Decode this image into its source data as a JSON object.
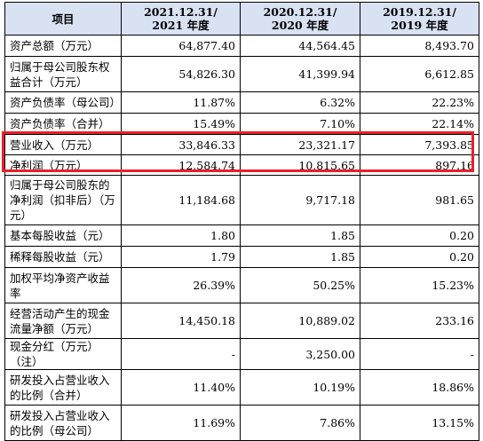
{
  "headers": [
    "项目",
    "2021.12.31/\n2021 年度",
    "2020.12.31/\n2020 年度",
    "2019.12.31/\n2019 年度"
  ],
  "rows": [
    {
      "label": "资产总额（万元）",
      "values": [
        "64,877.40",
        "44,564.45",
        "8,493.70"
      ]
    },
    {
      "label": "归属于母公司股东权益合计（万元）",
      "values": [
        "54,826.30",
        "41,399.94",
        "6,612.85"
      ]
    },
    {
      "label": "资产负债率（母公司）",
      "values": [
        "11.87%",
        "6.32%",
        "22.23%"
      ]
    },
    {
      "label": "资产负债率（合并）",
      "values": [
        "15.49%",
        "7.10%",
        "22.14%"
      ]
    },
    {
      "label": "营业收入（万元）",
      "values": [
        "33,846.33",
        "23,321.17",
        "7,393.85"
      ]
    },
    {
      "label": "净利润（万元）",
      "values": [
        "12,584.74",
        "10,815.65",
        "897.16"
      ]
    },
    {
      "label": "归属于母公司股东的净利润（扣非后）（万元）",
      "values": [
        "11,184.68",
        "9,717.18",
        "981.65"
      ]
    },
    {
      "label": "基本每股收益（元）",
      "values": [
        "1.80",
        "1.85",
        "0.20"
      ]
    },
    {
      "label": "稀释每股收益（元）",
      "values": [
        "1.79",
        "1.85",
        "0.20"
      ]
    },
    {
      "label": "加权平均净资产收益率",
      "values": [
        "26.39%",
        "50.25%",
        "15.23%"
      ]
    },
    {
      "label": "经营活动产生的现金流量净额（万元）",
      "values": [
        "14,450.18",
        "10,889.02",
        "233.16"
      ]
    },
    {
      "label": "现金分红（万元）（注）",
      "values": [
        "-",
        "3,250.00",
        "-"
      ]
    },
    {
      "label": "研发投入占营业收入的比例（合并）",
      "values": [
        "11.40%",
        "10.19%",
        "18.86%"
      ]
    },
    {
      "label": "研发投入占营业收入的比例（母公司）",
      "values": [
        "11.69%",
        "7.86%",
        "13.15%"
      ]
    }
  ],
  "highlight_color": "#e8202a",
  "header_bg": "#d9e2f3"
}
